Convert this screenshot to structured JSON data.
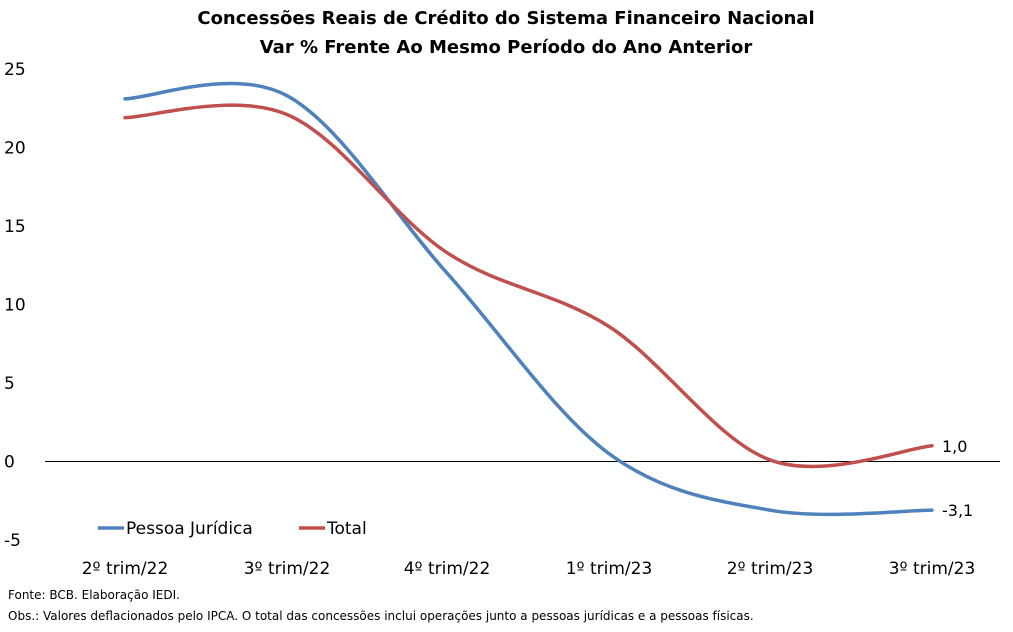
{
  "chart_data": {
    "type": "line",
    "title_line1": "Concessões Reais de Crédito do Sistema Financeiro Nacional",
    "title_line2": "Var % Frente Ao Mesmo Período do Ano Anterior",
    "categories": [
      "2º trim/22",
      "3º trim/22",
      "4º trim/22",
      "1º trim/23",
      "2º trim/23",
      "3º trim/23"
    ],
    "series": [
      {
        "name": "Pessoa Jurídica",
        "color": "#4F81BD",
        "values": [
          23.1,
          23.3,
          12.0,
          0.5,
          -3.1,
          -3.1
        ],
        "end_label": "-3,1"
      },
      {
        "name": "Total",
        "color": "#C0504D",
        "values": [
          21.9,
          22.1,
          13.3,
          8.6,
          0.1,
          1.0
        ],
        "end_label": "1,0"
      }
    ],
    "ylim": [
      -5,
      25
    ],
    "yticks": [
      "25",
      "20",
      "15",
      "10",
      "5",
      "0",
      "-5"
    ],
    "xlabel": "",
    "ylabel": "",
    "grid": false,
    "legend_position": "bottom-left"
  },
  "footer": {
    "source": "Fonte: BCB. Elaboração IEDI.",
    "obs": "Obs.: Valores deflacionados pelo IPCA. O total das concessões inclui operações junto a pessoas jurídicas e a pessoas físicas."
  }
}
